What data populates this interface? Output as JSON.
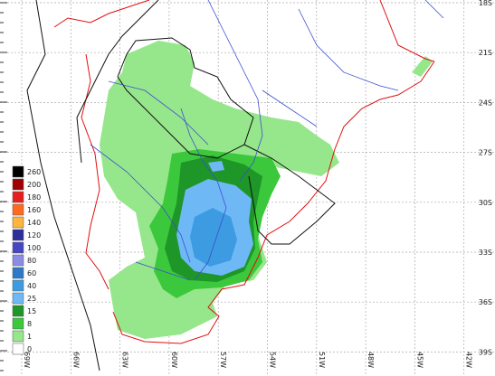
{
  "map": {
    "lat_labels": [
      "18S",
      "21S",
      "24S",
      "27S",
      "30S",
      "33S",
      "36S",
      "39S"
    ],
    "lon_labels": [
      "69W",
      "66W",
      "63W",
      "60W",
      "57W",
      "54W",
      "51W",
      "48W",
      "45W",
      "42W"
    ],
    "legend": [
      {
        "label": "260",
        "color": "#000000"
      },
      {
        "label": "200",
        "color": "#a00000"
      },
      {
        "label": "180",
        "color": "#e61e1e"
      },
      {
        "label": "160",
        "color": "#ff6a1e"
      },
      {
        "label": "140",
        "color": "#ffb43c"
      },
      {
        "label": "120",
        "color": "#2d2d9b"
      },
      {
        "label": "100",
        "color": "#4646c3"
      },
      {
        "label": "80",
        "color": "#8c8ce6"
      },
      {
        "label": "60",
        "color": "#2d78c8"
      },
      {
        "label": "40",
        "color": "#3c9be1"
      },
      {
        "label": "25",
        "color": "#6eb9f5"
      },
      {
        "label": "15",
        "color": "#1e9628"
      },
      {
        "label": "8",
        "color": "#3cc83c"
      },
      {
        "label": "1",
        "color": "#96e68c"
      },
      {
        "label": "0",
        "color": "#ffffff"
      }
    ]
  }
}
